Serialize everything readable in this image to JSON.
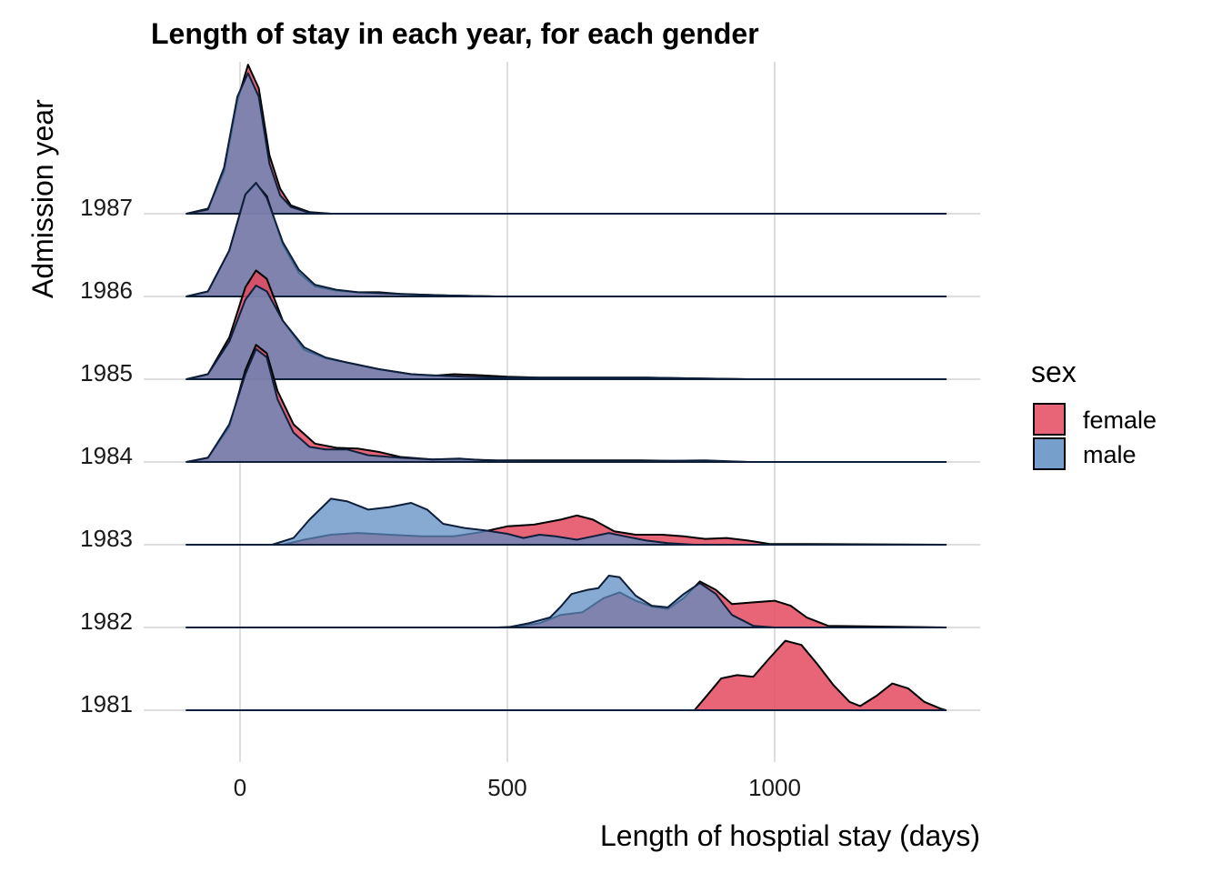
{
  "chart_data": {
    "type": "ridgeline",
    "title": "Length of stay in each year, for each gender",
    "xlabel": "Length of hosptial stay (days)",
    "ylabel": "Admission year",
    "xlim": [
      -100,
      1320
    ],
    "x_ticks": [
      0,
      500,
      1000
    ],
    "x_tick_labels": [
      "0",
      "500",
      "1000"
    ],
    "categories": [
      "1981",
      "1982",
      "1983",
      "1984",
      "1985",
      "1986",
      "1987"
    ],
    "grid": true,
    "legend": {
      "title": "sex",
      "position": "right",
      "entries": [
        {
          "label": "female",
          "color": "#E34A5E"
        },
        {
          "label": "male",
          "color": "#5F8EC3"
        }
      ]
    },
    "colors": {
      "female": "#E34A5E",
      "male": "#5F8EC3",
      "overlap": "#7A5A8C"
    },
    "series": [
      {
        "name": "female",
        "densities": {
          "1981": [
            [
              -100,
              0
            ],
            [
              850,
              0
            ],
            [
              870,
              0.15
            ],
            [
              900,
              0.38
            ],
            [
              930,
              0.42
            ],
            [
              960,
              0.4
            ],
            [
              990,
              0.62
            ],
            [
              1020,
              0.83
            ],
            [
              1050,
              0.78
            ],
            [
              1080,
              0.55
            ],
            [
              1110,
              0.3
            ],
            [
              1140,
              0.1
            ],
            [
              1160,
              0.05
            ],
            [
              1190,
              0.17
            ],
            [
              1220,
              0.32
            ],
            [
              1250,
              0.26
            ],
            [
              1280,
              0.1
            ],
            [
              1310,
              0.02
            ],
            [
              1320,
              0
            ]
          ],
          "1982": [
            [
              -100,
              0
            ],
            [
              480,
              0
            ],
            [
              520,
              0.01
            ],
            [
              560,
              0.05
            ],
            [
              600,
              0.15
            ],
            [
              640,
              0.18
            ],
            [
              680,
              0.35
            ],
            [
              710,
              0.42
            ],
            [
              740,
              0.32
            ],
            [
              770,
              0.25
            ],
            [
              800,
              0.22
            ],
            [
              830,
              0.35
            ],
            [
              860,
              0.55
            ],
            [
              890,
              0.45
            ],
            [
              920,
              0.28
            ],
            [
              960,
              0.3
            ],
            [
              1000,
              0.32
            ],
            [
              1030,
              0.26
            ],
            [
              1060,
              0.12
            ],
            [
              1100,
              0.02
            ],
            [
              1320,
              0
            ]
          ],
          "1983": [
            [
              -100,
              0
            ],
            [
              80,
              0
            ],
            [
              120,
              0.06
            ],
            [
              170,
              0.12
            ],
            [
              220,
              0.14
            ],
            [
              280,
              0.12
            ],
            [
              340,
              0.1
            ],
            [
              400,
              0.1
            ],
            [
              450,
              0.15
            ],
            [
              500,
              0.22
            ],
            [
              550,
              0.24
            ],
            [
              600,
              0.3
            ],
            [
              630,
              0.35
            ],
            [
              660,
              0.3
            ],
            [
              700,
              0.16
            ],
            [
              740,
              0.12
            ],
            [
              790,
              0.12
            ],
            [
              830,
              0.1
            ],
            [
              870,
              0.07
            ],
            [
              910,
              0.08
            ],
            [
              950,
              0.05
            ],
            [
              990,
              0.01
            ],
            [
              1320,
              0
            ]
          ],
          "1984": [
            [
              -100,
              0
            ],
            [
              -60,
              0.05
            ],
            [
              -20,
              0.42
            ],
            [
              10,
              1.1
            ],
            [
              30,
              1.4
            ],
            [
              50,
              1.3
            ],
            [
              70,
              0.85
            ],
            [
              100,
              0.45
            ],
            [
              140,
              0.22
            ],
            [
              180,
              0.17
            ],
            [
              220,
              0.16
            ],
            [
              260,
              0.12
            ],
            [
              300,
              0.06
            ],
            [
              360,
              0.03
            ],
            [
              420,
              0.03
            ],
            [
              480,
              0.02
            ],
            [
              560,
              0.02
            ],
            [
              650,
              0.02
            ],
            [
              750,
              0.02
            ],
            [
              850,
              0.01
            ],
            [
              950,
              0
            ],
            [
              1320,
              0
            ]
          ],
          "1985": [
            [
              -100,
              0
            ],
            [
              -60,
              0.06
            ],
            [
              -20,
              0.5
            ],
            [
              10,
              1.1
            ],
            [
              30,
              1.3
            ],
            [
              50,
              1.2
            ],
            [
              80,
              0.7
            ],
            [
              120,
              0.35
            ],
            [
              160,
              0.25
            ],
            [
              200,
              0.2
            ],
            [
              260,
              0.12
            ],
            [
              320,
              0.06
            ],
            [
              360,
              0.04
            ],
            [
              400,
              0.06
            ],
            [
              440,
              0.05
            ],
            [
              500,
              0.03
            ],
            [
              560,
              0.02
            ],
            [
              650,
              0.02
            ],
            [
              760,
              0.02
            ],
            [
              850,
              0.01
            ],
            [
              950,
              0
            ],
            [
              1320,
              0
            ]
          ],
          "1986": [
            [
              -100,
              0
            ],
            [
              -60,
              0.06
            ],
            [
              -20,
              0.55
            ],
            [
              10,
              1.22
            ],
            [
              30,
              1.35
            ],
            [
              50,
              1.2
            ],
            [
              80,
              0.62
            ],
            [
              110,
              0.28
            ],
            [
              140,
              0.12
            ],
            [
              180,
              0.07
            ],
            [
              220,
              0.05
            ],
            [
              260,
              0.05
            ],
            [
              300,
              0.03
            ],
            [
              350,
              0.02
            ],
            [
              400,
              0.01
            ],
            [
              480,
              0
            ],
            [
              1320,
              0
            ]
          ],
          "1987": [
            [
              -100,
              0
            ],
            [
              -60,
              0.06
            ],
            [
              -30,
              0.5
            ],
            [
              -5,
              1.35
            ],
            [
              15,
              1.78
            ],
            [
              35,
              1.5
            ],
            [
              55,
              0.7
            ],
            [
              75,
              0.3
            ],
            [
              95,
              0.1
            ],
            [
              130,
              0.02
            ],
            [
              170,
              0
            ],
            [
              1320,
              0
            ]
          ]
        }
      },
      {
        "name": "male",
        "densities": {
          "1981": [
            [
              -100,
              0
            ],
            [
              1320,
              0
            ]
          ],
          "1982": [
            [
              -100,
              0
            ],
            [
              500,
              0
            ],
            [
              540,
              0.05
            ],
            [
              580,
              0.12
            ],
            [
              600,
              0.25
            ],
            [
              620,
              0.4
            ],
            [
              650,
              0.45
            ],
            [
              670,
              0.47
            ],
            [
              690,
              0.62
            ],
            [
              710,
              0.6
            ],
            [
              740,
              0.38
            ],
            [
              770,
              0.26
            ],
            [
              800,
              0.24
            ],
            [
              830,
              0.4
            ],
            [
              860,
              0.53
            ],
            [
              890,
              0.4
            ],
            [
              920,
              0.15
            ],
            [
              960,
              0.02
            ],
            [
              1000,
              0
            ],
            [
              1320,
              0
            ]
          ],
          "1983": [
            [
              -100,
              0
            ],
            [
              60,
              0
            ],
            [
              100,
              0.08
            ],
            [
              130,
              0.3
            ],
            [
              170,
              0.55
            ],
            [
              200,
              0.52
            ],
            [
              240,
              0.42
            ],
            [
              280,
              0.45
            ],
            [
              320,
              0.5
            ],
            [
              350,
              0.42
            ],
            [
              380,
              0.25
            ],
            [
              420,
              0.2
            ],
            [
              460,
              0.17
            ],
            [
              500,
              0.13
            ],
            [
              530,
              0.08
            ],
            [
              560,
              0.12
            ],
            [
              590,
              0.1
            ],
            [
              630,
              0.06
            ],
            [
              660,
              0.1
            ],
            [
              690,
              0.14
            ],
            [
              720,
              0.1
            ],
            [
              760,
              0.05
            ],
            [
              800,
              0.02
            ],
            [
              850,
              0
            ],
            [
              1320,
              0
            ]
          ],
          "1984": [
            [
              -100,
              0
            ],
            [
              -60,
              0.05
            ],
            [
              -20,
              0.45
            ],
            [
              10,
              1.05
            ],
            [
              30,
              1.35
            ],
            [
              50,
              1.25
            ],
            [
              70,
              0.75
            ],
            [
              100,
              0.35
            ],
            [
              130,
              0.18
            ],
            [
              160,
              0.15
            ],
            [
              200,
              0.15
            ],
            [
              240,
              0.08
            ],
            [
              300,
              0.05
            ],
            [
              360,
              0.03
            ],
            [
              410,
              0.04
            ],
            [
              460,
              0.02
            ],
            [
              540,
              0.01
            ],
            [
              650,
              0.01
            ],
            [
              760,
              0.01
            ],
            [
              870,
              0.02
            ],
            [
              950,
              0
            ],
            [
              1320,
              0
            ]
          ],
          "1985": [
            [
              -100,
              0
            ],
            [
              -60,
              0.06
            ],
            [
              -20,
              0.45
            ],
            [
              10,
              0.95
            ],
            [
              30,
              1.12
            ],
            [
              50,
              1.05
            ],
            [
              80,
              0.7
            ],
            [
              120,
              0.38
            ],
            [
              160,
              0.26
            ],
            [
              200,
              0.2
            ],
            [
              260,
              0.12
            ],
            [
              320,
              0.06
            ],
            [
              380,
              0.04
            ],
            [
              420,
              0.03
            ],
            [
              480,
              0.02
            ],
            [
              560,
              0.02
            ],
            [
              650,
              0.02
            ],
            [
              760,
              0.02
            ],
            [
              850,
              0.01
            ],
            [
              950,
              0
            ],
            [
              1320,
              0
            ]
          ],
          "1986": [
            [
              -100,
              0
            ],
            [
              -60,
              0.06
            ],
            [
              -20,
              0.55
            ],
            [
              10,
              1.22
            ],
            [
              30,
              1.36
            ],
            [
              50,
              1.18
            ],
            [
              80,
              0.65
            ],
            [
              110,
              0.32
            ],
            [
              140,
              0.14
            ],
            [
              180,
              0.08
            ],
            [
              220,
              0.05
            ],
            [
              260,
              0.04
            ],
            [
              300,
              0.03
            ],
            [
              350,
              0.02
            ],
            [
              400,
              0.01
            ],
            [
              480,
              0
            ],
            [
              1320,
              0
            ]
          ],
          "1987": [
            [
              -100,
              0
            ],
            [
              -60,
              0.05
            ],
            [
              -30,
              0.55
            ],
            [
              -5,
              1.4
            ],
            [
              15,
              1.68
            ],
            [
              35,
              1.4
            ],
            [
              55,
              0.6
            ],
            [
              75,
              0.22
            ],
            [
              95,
              0.08
            ],
            [
              130,
              0.01
            ],
            [
              170,
              0
            ],
            [
              1320,
              0
            ]
          ]
        }
      }
    ]
  }
}
